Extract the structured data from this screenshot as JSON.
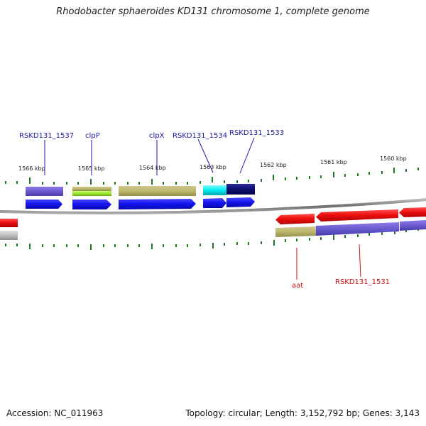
{
  "title": "Rhodobacter sphaeroides KD131 chromosome 1, complete genome",
  "footer": {
    "accession": "Accession: NC_011963",
    "topology": "Topology: circular; Length: 3,152,792 bp; Genes: 3,143"
  },
  "scale_labels": [
    "1566 kbp",
    "1565 kbp",
    "1564 kbp",
    "1563 kbp",
    "1562 kbp",
    "1561 kbp",
    "1560 kbp"
  ],
  "genes_top": [
    "RSKD131_1537",
    "clpP",
    "clpX",
    "RSKD131_1534",
    "RSKD131_1533"
  ],
  "genes_bottom": [
    "aat",
    "RSKD131_1531"
  ],
  "colors": {
    "forward_cds": "#1010ee",
    "reverse_cds": "#e01010",
    "backbone": "#808080",
    "tick": "#1e7a1e",
    "top_label": "#1a1aa6",
    "bottom_label": "#cc1111"
  }
}
